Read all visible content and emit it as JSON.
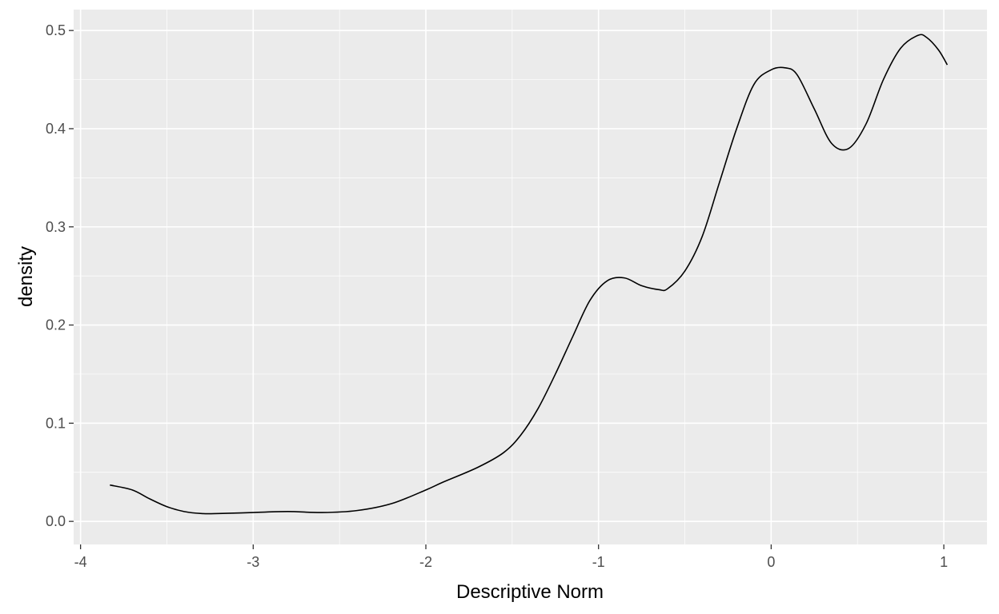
{
  "chart_data": {
    "type": "line",
    "title": "",
    "xlabel": "Descriptive Norm",
    "ylabel": "density",
    "xlim": [
      -4.04,
      1.25
    ],
    "ylim": [
      -0.0235,
      0.5213
    ],
    "x_ticks": [
      -4,
      -3,
      -2,
      -1,
      0,
      1
    ],
    "x_tick_labels": [
      "-4",
      "-3",
      "-2",
      "-1",
      "0",
      "1"
    ],
    "y_ticks": [
      0.0,
      0.1,
      0.2,
      0.3,
      0.4,
      0.5
    ],
    "y_tick_labels": [
      "0.0",
      "0.1",
      "0.2",
      "0.3",
      "0.4",
      "0.5"
    ],
    "grid": true,
    "colors": {
      "panel": "#ebebeb",
      "grid": "#ffffff",
      "line": "#000000",
      "tick_text": "#4d4d4d",
      "axis_text": "#000000"
    },
    "series": [
      {
        "x": [
          -3.83,
          -3.7,
          -3.6,
          -3.5,
          -3.4,
          -3.3,
          -3.2,
          -3.0,
          -2.8,
          -2.6,
          -2.4,
          -2.2,
          -2.0,
          -1.9,
          -1.7,
          -1.55,
          -1.45,
          -1.35,
          -1.25,
          -1.15,
          -1.05,
          -0.95,
          -0.85,
          -0.75,
          -0.65,
          -0.6,
          -0.5,
          -0.4,
          -0.3,
          -0.2,
          -0.1,
          0.0,
          0.08,
          0.15,
          0.25,
          0.35,
          0.45,
          0.55,
          0.65,
          0.75,
          0.85,
          0.9,
          0.97,
          1.02
        ],
        "y": [
          0.037,
          0.032,
          0.023,
          0.015,
          0.01,
          0.008,
          0.008,
          0.009,
          0.01,
          0.009,
          0.011,
          0.018,
          0.032,
          0.04,
          0.055,
          0.07,
          0.088,
          0.115,
          0.15,
          0.188,
          0.225,
          0.245,
          0.248,
          0.24,
          0.236,
          0.237,
          0.255,
          0.29,
          0.345,
          0.4,
          0.445,
          0.46,
          0.462,
          0.455,
          0.42,
          0.385,
          0.38,
          0.405,
          0.45,
          0.482,
          0.495,
          0.493,
          0.48,
          0.465
        ]
      }
    ]
  }
}
